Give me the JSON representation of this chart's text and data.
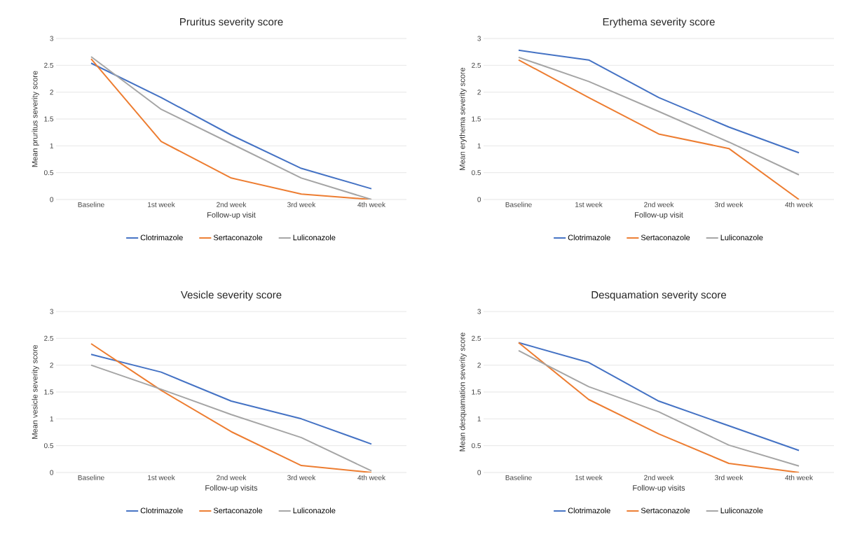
{
  "chart_data": [
    {
      "type": "line",
      "title": "Pruritus severity score",
      "xlabel": "Follow-up visit",
      "ylabel": "Mean pruritus severity score",
      "categories": [
        "Baseline",
        "1st week",
        "2nd week",
        "3rd week",
        "4th week"
      ],
      "ylim": [
        0,
        3
      ],
      "yticks": [
        0,
        0.5,
        1,
        1.5,
        2,
        2.5,
        3
      ],
      "grid": "y",
      "legend": "bottom",
      "series": [
        {
          "name": "Clotrimazole",
          "color": "#4472c4",
          "values": [
            2.54,
            1.9,
            1.2,
            0.58,
            0.2
          ]
        },
        {
          "name": "Sertaconazole",
          "color": "#ed7d31",
          "values": [
            2.62,
            1.08,
            0.4,
            0.1,
            0
          ]
        },
        {
          "name": "Luliconazole",
          "color": "#a5a5a5",
          "values": [
            2.66,
            1.68,
            1.04,
            0.4,
            0
          ]
        }
      ]
    },
    {
      "type": "line",
      "title": "Erythema severity score",
      "xlabel": "Follow-up visit",
      "ylabel": "Mean erythema severity score",
      "categories": [
        "Baseline",
        "1st week",
        "2nd week",
        "3rd week",
        "4th week"
      ],
      "ylim": [
        0,
        3
      ],
      "yticks": [
        0,
        0.5,
        1,
        1.5,
        2,
        2.5,
        3
      ],
      "grid": "y",
      "legend": "bottom",
      "series": [
        {
          "name": "Clotrimazole",
          "color": "#4472c4",
          "values": [
            2.78,
            2.6,
            1.9,
            1.35,
            0.87
          ]
        },
        {
          "name": "Sertaconazole",
          "color": "#ed7d31",
          "values": [
            2.6,
            1.9,
            1.22,
            0.95,
            0
          ]
        },
        {
          "name": "Luliconazole",
          "color": "#a5a5a5",
          "values": [
            2.65,
            2.2,
            1.64,
            1.07,
            0.46
          ]
        }
      ]
    },
    {
      "type": "line",
      "title": "Vesicle severity score",
      "xlabel": "Follow-up visits",
      "ylabel": "Mean vesicle severity score",
      "categories": [
        "Baseline",
        "1st week",
        "2nd week",
        "3rd week",
        "4th week"
      ],
      "ylim": [
        0,
        3
      ],
      "yticks": [
        0,
        0.5,
        1,
        1.5,
        2,
        2.5,
        3
      ],
      "grid": "y",
      "legend": "bottom",
      "series": [
        {
          "name": "Clotrimazole",
          "color": "#4472c4",
          "values": [
            2.2,
            1.87,
            1.33,
            1.0,
            0.53
          ]
        },
        {
          "name": "Sertaconazole",
          "color": "#ed7d31",
          "values": [
            2.4,
            1.53,
            0.76,
            0.13,
            0
          ]
        },
        {
          "name": "Luliconazole",
          "color": "#a5a5a5",
          "values": [
            2.0,
            1.55,
            1.08,
            0.65,
            0.03
          ]
        }
      ]
    },
    {
      "type": "line",
      "title": "Desquamation severity score",
      "xlabel": "Follow-up visits",
      "ylabel": "Mean desquamation severity score",
      "categories": [
        "Baseline",
        "1st week",
        "2nd week",
        "3rd week",
        "4th week"
      ],
      "ylim": [
        0,
        3
      ],
      "yticks": [
        0,
        0.5,
        1,
        1.5,
        2,
        2.5,
        3
      ],
      "grid": "y",
      "legend": "bottom",
      "series": [
        {
          "name": "Clotrimazole",
          "color": "#4472c4",
          "values": [
            2.42,
            2.05,
            1.33,
            0.87,
            0.41
          ]
        },
        {
          "name": "Sertaconazole",
          "color": "#ed7d31",
          "values": [
            2.42,
            1.36,
            0.72,
            0.17,
            0
          ]
        },
        {
          "name": "Luliconazole",
          "color": "#a5a5a5",
          "values": [
            2.27,
            1.6,
            1.13,
            0.51,
            0.12
          ]
        }
      ]
    }
  ]
}
